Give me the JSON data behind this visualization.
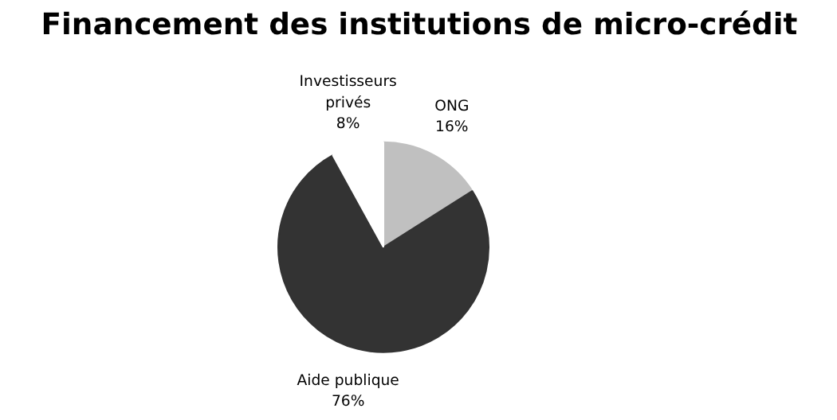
{
  "chart_data": {
    "type": "pie",
    "title": "Financement des institutions de micro-crédit",
    "categories": [
      "ONG",
      "Aide publique",
      "Investisseurs\nprivés"
    ],
    "values": [
      16,
      76,
      8
    ],
    "colors": [
      "#c0c0c0",
      "#333333",
      "#ffffff"
    ],
    "value_labels": [
      "16%",
      "76%",
      "8%"
    ]
  }
}
